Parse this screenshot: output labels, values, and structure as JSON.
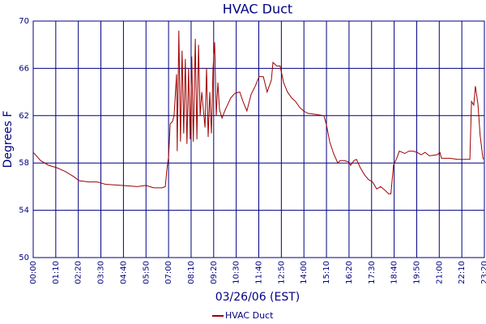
{
  "chart_data": {
    "type": "line",
    "title": "HVAC Duct",
    "xlabel": "03/26/06 (EST)",
    "ylabel": "Degrees F",
    "x": [
      "00:00",
      "00:23",
      "00:48",
      "01:13",
      "01:38",
      "02:03",
      "02:23",
      "02:53",
      "03:19",
      "03:44",
      "04:34",
      "05:24",
      "05:49",
      "06:14",
      "06:40",
      "06:50",
      "06:55",
      "07:00",
      "07:05",
      "07:12",
      "07:17",
      "07:25",
      "07:27",
      "07:32",
      "07:37",
      "07:42",
      "07:47",
      "07:52",
      "07:57",
      "08:02",
      "08:07",
      "08:12",
      "08:17",
      "08:23",
      "08:28",
      "08:33",
      "08:38",
      "08:43",
      "08:48",
      "08:53",
      "08:58",
      "09:03",
      "09:08",
      "09:13",
      "09:18",
      "09:23",
      "09:28",
      "09:33",
      "09:38",
      "09:46",
      "09:56",
      "10:13",
      "10:26",
      "10:41",
      "10:51",
      "11:03",
      "11:16",
      "11:29",
      "11:41",
      "11:54",
      "12:06",
      "12:19",
      "12:24",
      "12:36",
      "12:46",
      "12:57",
      "13:09",
      "13:22",
      "13:34",
      "13:47",
      "13:59",
      "14:12",
      "14:37",
      "15:02",
      "15:10",
      "15:20",
      "15:32",
      "15:45",
      "15:52",
      "16:05",
      "16:18",
      "16:25",
      "16:35",
      "16:43",
      "16:55",
      "17:08",
      "17:20",
      "17:33",
      "17:46",
      "17:58",
      "18:11",
      "18:23",
      "18:30",
      "18:38",
      "18:48",
      "18:56",
      "19:13",
      "19:26",
      "19:39",
      "19:51",
      "20:04",
      "20:16",
      "20:29",
      "20:54",
      "21:02",
      "21:07",
      "21:32",
      "21:57",
      "22:22",
      "22:35",
      "22:40",
      "22:47",
      "22:52",
      "23:00",
      "23:07",
      "23:15",
      "23:17"
    ],
    "series": [
      {
        "name": "HVAC Duct",
        "color": "#a00000",
        "values": [
          58.9,
          58.2,
          57.8,
          57.6,
          57.3,
          56.9,
          56.5,
          56.4,
          56.4,
          56.2,
          56.1,
          56.0,
          56.1,
          55.9,
          55.9,
          56.0,
          57.5,
          58.5,
          61.3,
          61.5,
          62.0,
          65.5,
          59.0,
          69.2,
          59.8,
          67.5,
          60.5,
          66.8,
          59.6,
          66.0,
          60.0,
          67.0,
          59.8,
          68.5,
          60.0,
          68.0,
          62.0,
          64.0,
          62.5,
          61.0,
          66.0,
          60.2,
          64.0,
          60.5,
          66.0,
          68.2,
          62.0,
          64.8,
          62.5,
          61.8,
          62.5,
          63.5,
          63.9,
          64.0,
          63.2,
          62.4,
          63.8,
          64.5,
          65.3,
          65.3,
          64.0,
          65.0,
          66.5,
          66.2,
          66.2,
          64.8,
          64.0,
          63.5,
          63.2,
          62.7,
          62.4,
          62.2,
          62.1,
          62.0,
          61.2,
          59.8,
          58.8,
          58.0,
          58.2,
          58.2,
          58.1,
          57.8,
          58.2,
          58.3,
          57.6,
          57.0,
          56.6,
          56.4,
          55.8,
          56.0,
          55.7,
          55.4,
          55.4,
          57.8,
          58.4,
          59.0,
          58.8,
          59.0,
          59.0,
          58.9,
          58.7,
          58.9,
          58.6,
          58.7,
          58.9,
          58.4,
          58.4,
          58.3,
          58.3,
          58.3,
          63.2,
          62.9,
          64.5,
          63.0,
          60.3,
          58.5,
          58.3
        ]
      }
    ],
    "xlim": [
      "00:00",
      "23:20"
    ],
    "xticks": [
      "00:00",
      "01:10",
      "02:20",
      "03:30",
      "04:40",
      "05:50",
      "07:00",
      "08:10",
      "09:20",
      "10:30",
      "11:40",
      "12:50",
      "14:00",
      "15:10",
      "16:20",
      "17:30",
      "18:40",
      "19:50",
      "21:00",
      "22:10",
      "23:20"
    ],
    "ylim": [
      50,
      70
    ],
    "yticks": [
      50,
      54,
      58,
      62,
      66,
      70
    ],
    "grid": true,
    "legend": "bottom"
  }
}
